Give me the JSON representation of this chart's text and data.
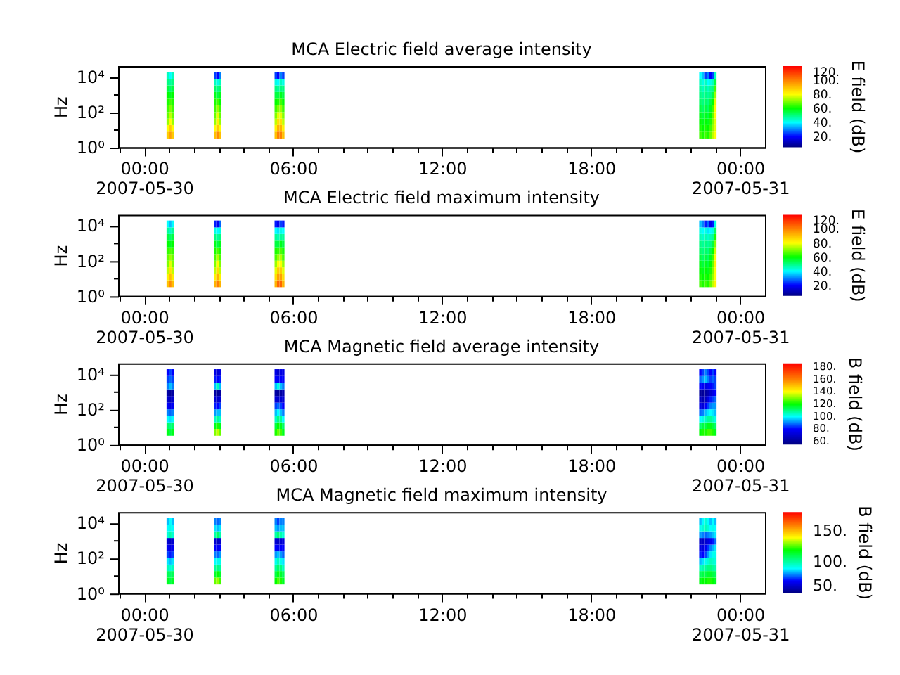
{
  "chart_data": [
    {
      "type": "scatter",
      "marker": "square",
      "title": "MCA  Electric field average intensity",
      "ylabel": "Hz",
      "clabel": "E field (dB)",
      "log": "y",
      "x": [
        0.95,
        1.05,
        1.15,
        2.85,
        2.95,
        3.05,
        5.3,
        5.4,
        5.5,
        5.6,
        22.4,
        22.5,
        22.6,
        22.7,
        22.8,
        22.9,
        23,
        0.95,
        1.05,
        1.15,
        2.85,
        2.95,
        3.05,
        5.3,
        5.4,
        5.5,
        5.6,
        22.4,
        22.5,
        22.6,
        22.7,
        22.8,
        22.9,
        23,
        0.95,
        1.05,
        1.15,
        2.85,
        2.95,
        3.05,
        5.3,
        5.4,
        5.5,
        5.6,
        22.4,
        22.5,
        22.6,
        22.7,
        22.8,
        22.9,
        23,
        0.95,
        1.05,
        1.15,
        2.85,
        2.95,
        3.05,
        5.3,
        5.4,
        5.5,
        5.6,
        22.4,
        22.5,
        22.6,
        22.7,
        22.8,
        22.9,
        23,
        0.95,
        1.05,
        1.15,
        2.85,
        2.95,
        3.05,
        5.3,
        5.4,
        5.5,
        5.6,
        22.4,
        22.5,
        22.6,
        22.7,
        22.8,
        22.9,
        23,
        0.95,
        1.05,
        1.15,
        2.85,
        2.95,
        3.05,
        5.3,
        5.4,
        5.5,
        5.6,
        22.4,
        22.5,
        22.6,
        22.7,
        22.8,
        22.9,
        23,
        0.95,
        1.05,
        1.15,
        2.85,
        2.95,
        3.05,
        5.3,
        5.4,
        5.5,
        5.6,
        22.4,
        22.5,
        22.6,
        22.7,
        22.8,
        22.9,
        23,
        0.95,
        1.05,
        1.15,
        2.85,
        2.95,
        3.05,
        5.3,
        5.4,
        5.5,
        5.6,
        22.4,
        22.5,
        22.6,
        22.7,
        22.8,
        22.9,
        23,
        0.95,
        1.05,
        1.15,
        2.85,
        2.95,
        3.05,
        5.3,
        5.4,
        5.5,
        5.6,
        22.4,
        22.5,
        22.6,
        22.7,
        22.8,
        22.9,
        23,
        0.95,
        1.05,
        1.15,
        2.85,
        2.95,
        3.05,
        5.3,
        5.4,
        5.5,
        5.6,
        22.4,
        22.5,
        22.6,
        22.7,
        22.8,
        22.9,
        23
      ],
      "values": [
        4.9,
        4.9,
        4.9,
        4.9,
        4.9,
        4.9,
        4.9,
        4.9,
        4.9,
        4.9,
        4.9,
        4.9,
        4.9,
        4.9,
        4.9,
        4.9,
        4.9,
        12,
        12,
        12,
        12,
        12,
        12,
        12,
        12,
        12,
        12,
        12,
        12,
        12,
        12,
        12,
        12,
        12,
        27,
        27,
        27,
        27,
        27,
        27,
        27,
        27,
        27,
        27,
        27,
        27,
        27,
        27,
        27,
        27,
        27,
        65,
        65,
        65,
        65,
        65,
        65,
        65,
        65,
        65,
        65,
        65,
        65,
        65,
        65,
        65,
        65,
        65,
        150,
        150,
        150,
        150,
        150,
        150,
        150,
        150,
        150,
        150,
        150,
        150,
        150,
        150,
        150,
        150,
        150,
        370,
        370,
        370,
        370,
        370,
        370,
        370,
        370,
        370,
        370,
        370,
        370,
        370,
        370,
        370,
        370,
        370,
        870,
        870,
        870,
        870,
        870,
        870,
        870,
        870,
        870,
        870,
        870,
        870,
        870,
        870,
        870,
        870,
        870,
        2100,
        2100,
        2100,
        2100,
        2100,
        2100,
        2100,
        2100,
        2100,
        2100,
        2100,
        2100,
        2100,
        2100,
        2100,
        2100,
        2100,
        4900,
        4900,
        4900,
        4900,
        4900,
        4900,
        4900,
        4900,
        4900,
        4900,
        4900,
        4900,
        4900,
        4900,
        4900,
        4900,
        4900,
        12000,
        12000,
        12000,
        12000,
        12000,
        12000,
        12000,
        12000,
        12000,
        12000,
        12000,
        12000,
        12000,
        12000,
        12000,
        12000,
        12000
      ],
      "cvalues": [
        88,
        95,
        88,
        90,
        98,
        90,
        90,
        100,
        100,
        90,
        65,
        62,
        65,
        62,
        68,
        75,
        80,
        80,
        88,
        80,
        80,
        88,
        80,
        82,
        92,
        92,
        82,
        62,
        60,
        62,
        60,
        65,
        72,
        78,
        72,
        80,
        72,
        72,
        82,
        72,
        75,
        85,
        85,
        75,
        60,
        58,
        60,
        58,
        62,
        70,
        78,
        68,
        75,
        68,
        68,
        78,
        68,
        70,
        78,
        78,
        70,
        58,
        55,
        58,
        55,
        60,
        68,
        80,
        65,
        70,
        65,
        65,
        72,
        65,
        65,
        70,
        72,
        65,
        55,
        52,
        55,
        52,
        58,
        65,
        80,
        62,
        65,
        62,
        62,
        65,
        60,
        60,
        62,
        65,
        60,
        52,
        50,
        52,
        50,
        55,
        60,
        78,
        60,
        58,
        60,
        58,
        55,
        58,
        55,
        55,
        58,
        55,
        50,
        48,
        50,
        48,
        50,
        55,
        72,
        55,
        52,
        55,
        52,
        50,
        52,
        50,
        48,
        50,
        50,
        48,
        45,
        48,
        45,
        48,
        50,
        65,
        50,
        48,
        50,
        45,
        42,
        45,
        42,
        40,
        45,
        42,
        45,
        42,
        45,
        40,
        42,
        45,
        55,
        45,
        40,
        45,
        25,
        20,
        30,
        25,
        20,
        30,
        25,
        40,
        35,
        25,
        30,
        20,
        25,
        45
      ],
      "xlim": [
        -1.05,
        25
      ],
      "xticks": [
        {
          "value": -1,
          "label": null
        },
        {
          "value": 0,
          "label": "00:00\n2007-05-30"
        },
        {
          "value": 1,
          "label": null
        },
        {
          "value": 2,
          "label": null
        },
        {
          "value": 3,
          "label": null
        },
        {
          "value": 4,
          "label": null
        },
        {
          "value": 5,
          "label": null
        },
        {
          "value": 6,
          "label": "06:00"
        },
        {
          "value": 7,
          "label": null
        },
        {
          "value": 8,
          "label": null
        },
        {
          "value": 9,
          "label": null
        },
        {
          "value": 10,
          "label": null
        },
        {
          "value": 11,
          "label": null
        },
        {
          "value": 12,
          "label": "12:00"
        },
        {
          "value": 13,
          "label": null
        },
        {
          "value": 14,
          "label": null
        },
        {
          "value": 15,
          "label": null
        },
        {
          "value": 16,
          "label": null
        },
        {
          "value": 17,
          "label": null
        },
        {
          "value": 18,
          "label": "18:00"
        },
        {
          "value": 19,
          "label": null
        },
        {
          "value": 20,
          "label": null
        },
        {
          "value": 21,
          "label": null
        },
        {
          "value": 22,
          "label": null
        },
        {
          "value": 23,
          "label": null
        },
        {
          "value": 24,
          "label": "00:00\n2007-05-31"
        }
      ],
      "ylim": [
        1,
        40000
      ],
      "yticks": [
        {
          "value": 1,
          "label": "10⁰"
        },
        {
          "value": 10,
          "label": null
        },
        {
          "value": 100,
          "label": "10²"
        },
        {
          "value": 1000,
          "label": null
        },
        {
          "value": 10000,
          "label": "10⁴"
        }
      ],
      "clim": [
        5,
        120
      ],
      "cticks": [
        {
          "value": 20,
          "label": "20."
        },
        {
          "value": 40,
          "label": "40."
        },
        {
          "value": 60,
          "label": "60."
        },
        {
          "value": 80,
          "label": "80."
        },
        {
          "value": 100,
          "label": "100."
        },
        {
          "value": 120,
          "label": "120."
        }
      ]
    },
    {
      "type": "scatter",
      "marker": "square",
      "title": "MCA  Electric field maximum intensity",
      "ylabel": "Hz",
      "clabel": "E field (dB)",
      "log": "y",
      "x": [
        0.95,
        1.05,
        1.15,
        2.85,
        2.95,
        3.05,
        5.3,
        5.4,
        5.5,
        5.6,
        22.4,
        22.5,
        22.6,
        22.7,
        22.8,
        22.9,
        23,
        0.95,
        1.05,
        1.15,
        2.85,
        2.95,
        3.05,
        5.3,
        5.4,
        5.5,
        5.6,
        22.4,
        22.5,
        22.6,
        22.7,
        22.8,
        22.9,
        23,
        0.95,
        1.05,
        1.15,
        2.85,
        2.95,
        3.05,
        5.3,
        5.4,
        5.5,
        5.6,
        22.4,
        22.5,
        22.6,
        22.7,
        22.8,
        22.9,
        23,
        0.95,
        1.05,
        1.15,
        2.85,
        2.95,
        3.05,
        5.3,
        5.4,
        5.5,
        5.6,
        22.4,
        22.5,
        22.6,
        22.7,
        22.8,
        22.9,
        23,
        0.95,
        1.05,
        1.15,
        2.85,
        2.95,
        3.05,
        5.3,
        5.4,
        5.5,
        5.6,
        22.4,
        22.5,
        22.6,
        22.7,
        22.8,
        22.9,
        23,
        0.95,
        1.05,
        1.15,
        2.85,
        2.95,
        3.05,
        5.3,
        5.4,
        5.5,
        5.6,
        22.4,
        22.5,
        22.6,
        22.7,
        22.8,
        22.9,
        23,
        0.95,
        1.05,
        1.15,
        2.85,
        2.95,
        3.05,
        5.3,
        5.4,
        5.5,
        5.6,
        22.4,
        22.5,
        22.6,
        22.7,
        22.8,
        22.9,
        23,
        0.95,
        1.05,
        1.15,
        2.85,
        2.95,
        3.05,
        5.3,
        5.4,
        5.5,
        5.6,
        22.4,
        22.5,
        22.6,
        22.7,
        22.8,
        22.9,
        23,
        0.95,
        1.05,
        1.15,
        2.85,
        2.95,
        3.05,
        5.3,
        5.4,
        5.5,
        5.6,
        22.4,
        22.5,
        22.6,
        22.7,
        22.8,
        22.9,
        23,
        0.95,
        1.05,
        1.15,
        2.85,
        2.95,
        3.05,
        5.3,
        5.4,
        5.5,
        5.6,
        22.4,
        22.5,
        22.6,
        22.7,
        22.8,
        22.9,
        23
      ],
      "values": [
        4.9,
        4.9,
        4.9,
        4.9,
        4.9,
        4.9,
        4.9,
        4.9,
        4.9,
        4.9,
        4.9,
        4.9,
        4.9,
        4.9,
        4.9,
        4.9,
        4.9,
        12,
        12,
        12,
        12,
        12,
        12,
        12,
        12,
        12,
        12,
        12,
        12,
        12,
        12,
        12,
        12,
        12,
        27,
        27,
        27,
        27,
        27,
        27,
        27,
        27,
        27,
        27,
        27,
        27,
        27,
        27,
        27,
        27,
        27,
        65,
        65,
        65,
        65,
        65,
        65,
        65,
        65,
        65,
        65,
        65,
        65,
        65,
        65,
        65,
        65,
        65,
        150,
        150,
        150,
        150,
        150,
        150,
        150,
        150,
        150,
        150,
        150,
        150,
        150,
        150,
        150,
        150,
        150,
        370,
        370,
        370,
        370,
        370,
        370,
        370,
        370,
        370,
        370,
        370,
        370,
        370,
        370,
        370,
        370,
        370,
        870,
        870,
        870,
        870,
        870,
        870,
        870,
        870,
        870,
        870,
        870,
        870,
        870,
        870,
        870,
        870,
        870,
        2100,
        2100,
        2100,
        2100,
        2100,
        2100,
        2100,
        2100,
        2100,
        2100,
        2100,
        2100,
        2100,
        2100,
        2100,
        2100,
        2100,
        4900,
        4900,
        4900,
        4900,
        4900,
        4900,
        4900,
        4900,
        4900,
        4900,
        4900,
        4900,
        4900,
        4900,
        4900,
        4900,
        4900,
        12000,
        12000,
        12000,
        12000,
        12000,
        12000,
        12000,
        12000,
        12000,
        12000,
        12000,
        12000,
        12000,
        12000,
        12000,
        12000,
        12000
      ],
      "cvalues": [
        90,
        98,
        90,
        92,
        100,
        92,
        92,
        104,
        104,
        92,
        65,
        62,
        65,
        62,
        68,
        75,
        82,
        82,
        90,
        82,
        82,
        92,
        82,
        85,
        95,
        95,
        85,
        62,
        60,
        62,
        60,
        65,
        72,
        80,
        75,
        84,
        75,
        75,
        85,
        75,
        78,
        88,
        88,
        78,
        60,
        58,
        60,
        58,
        62,
        70,
        80,
        70,
        78,
        70,
        70,
        80,
        70,
        72,
        80,
        80,
        72,
        58,
        55,
        58,
        55,
        60,
        68,
        82,
        68,
        72,
        68,
        66,
        74,
        66,
        66,
        72,
        74,
        66,
        55,
        52,
        55,
        52,
        58,
        65,
        80,
        64,
        66,
        64,
        62,
        66,
        62,
        62,
        64,
        66,
        62,
        52,
        50,
        52,
        50,
        55,
        60,
        76,
        60,
        58,
        60,
        58,
        55,
        58,
        55,
        55,
        58,
        55,
        50,
        48,
        50,
        48,
        50,
        55,
        70,
        55,
        52,
        55,
        50,
        48,
        50,
        48,
        46,
        48,
        48,
        46,
        44,
        46,
        44,
        46,
        48,
        62,
        48,
        45,
        48,
        42,
        40,
        42,
        40,
        38,
        42,
        40,
        42,
        40,
        42,
        38,
        40,
        42,
        52,
        40,
        35,
        40,
        22,
        18,
        28,
        22,
        18,
        25,
        22,
        35,
        30,
        22,
        28,
        18,
        22,
        42
      ],
      "xlim": [
        -1.05,
        25
      ],
      "xticks": [
        {
          "value": -1,
          "label": null
        },
        {
          "value": 0,
          "label": "00:00\n2007-05-30"
        },
        {
          "value": 1,
          "label": null
        },
        {
          "value": 2,
          "label": null
        },
        {
          "value": 3,
          "label": null
        },
        {
          "value": 4,
          "label": null
        },
        {
          "value": 5,
          "label": null
        },
        {
          "value": 6,
          "label": "06:00"
        },
        {
          "value": 7,
          "label": null
        },
        {
          "value": 8,
          "label": null
        },
        {
          "value": 9,
          "label": null
        },
        {
          "value": 10,
          "label": null
        },
        {
          "value": 11,
          "label": null
        },
        {
          "value": 12,
          "label": "12:00"
        },
        {
          "value": 13,
          "label": null
        },
        {
          "value": 14,
          "label": null
        },
        {
          "value": 15,
          "label": null
        },
        {
          "value": 16,
          "label": null
        },
        {
          "value": 17,
          "label": null
        },
        {
          "value": 18,
          "label": "18:00"
        },
        {
          "value": 19,
          "label": null
        },
        {
          "value": 20,
          "label": null
        },
        {
          "value": 21,
          "label": null
        },
        {
          "value": 22,
          "label": null
        },
        {
          "value": 23,
          "label": null
        },
        {
          "value": 24,
          "label": "00:00\n2007-05-31"
        }
      ],
      "ylim": [
        1,
        40000
      ],
      "yticks": [
        {
          "value": 1,
          "label": "10⁰"
        },
        {
          "value": 10,
          "label": null
        },
        {
          "value": 100,
          "label": "10²"
        },
        {
          "value": 1000,
          "label": null
        },
        {
          "value": 10000,
          "label": "10⁴"
        }
      ],
      "clim": [
        5,
        120
      ],
      "cticks": [
        {
          "value": 20,
          "label": "20."
        },
        {
          "value": 40,
          "label": "40."
        },
        {
          "value": 60,
          "label": "60."
        },
        {
          "value": 80,
          "label": "80."
        },
        {
          "value": 100,
          "label": "100."
        },
        {
          "value": 120,
          "label": "120."
        }
      ]
    },
    {
      "type": "scatter",
      "marker": "square",
      "title": "MCA  Magnetic field average intensity",
      "ylabel": "Hz",
      "clabel": "B field (dB)",
      "log": "y",
      "x": [
        0.95,
        1.05,
        1.15,
        2.85,
        2.95,
        3.05,
        5.3,
        5.4,
        5.5,
        5.6,
        22.4,
        22.5,
        22.6,
        22.7,
        22.8,
        22.9,
        23,
        0.95,
        1.05,
        1.15,
        2.85,
        2.95,
        3.05,
        5.3,
        5.4,
        5.5,
        5.6,
        22.4,
        22.5,
        22.6,
        22.7,
        22.8,
        22.9,
        23,
        0.95,
        1.05,
        1.15,
        2.85,
        2.95,
        3.05,
        5.3,
        5.4,
        5.5,
        5.6,
        22.4,
        22.5,
        22.6,
        22.7,
        22.8,
        22.9,
        23,
        0.95,
        1.05,
        1.15,
        2.85,
        2.95,
        3.05,
        5.3,
        5.4,
        5.5,
        5.6,
        22.4,
        22.5,
        22.6,
        22.7,
        22.8,
        22.9,
        23,
        0.95,
        1.05,
        1.15,
        2.85,
        2.95,
        3.05,
        5.3,
        5.4,
        5.5,
        5.6,
        22.4,
        22.5,
        22.6,
        22.7,
        22.8,
        22.9,
        23,
        0.95,
        1.05,
        1.15,
        2.85,
        2.95,
        3.05,
        5.3,
        5.4,
        5.5,
        5.6,
        22.4,
        22.5,
        22.6,
        22.7,
        22.8,
        22.9,
        23,
        0.95,
        1.05,
        1.15,
        2.85,
        2.95,
        3.05,
        5.3,
        5.4,
        5.5,
        5.6,
        22.4,
        22.5,
        22.6,
        22.7,
        22.8,
        22.9,
        23,
        0.95,
        1.05,
        1.15,
        2.85,
        2.95,
        3.05,
        5.3,
        5.4,
        5.5,
        5.6,
        22.4,
        22.5,
        22.6,
        22.7,
        22.8,
        22.9,
        23,
        0.95,
        1.05,
        1.15,
        2.85,
        2.95,
        3.05,
        5.3,
        5.4,
        5.5,
        5.6,
        22.4,
        22.5,
        22.6,
        22.7,
        22.8,
        22.9,
        23,
        0.95,
        1.05,
        1.15,
        2.85,
        2.95,
        3.05,
        5.3,
        5.4,
        5.5,
        5.6,
        22.4,
        22.5,
        22.6,
        22.7,
        22.8,
        22.9,
        23
      ],
      "values": [
        4.9,
        4.9,
        4.9,
        4.9,
        4.9,
        4.9,
        4.9,
        4.9,
        4.9,
        4.9,
        4.9,
        4.9,
        4.9,
        4.9,
        4.9,
        4.9,
        4.9,
        12,
        12,
        12,
        12,
        12,
        12,
        12,
        12,
        12,
        12,
        12,
        12,
        12,
        12,
        12,
        12,
        12,
        27,
        27,
        27,
        27,
        27,
        27,
        27,
        27,
        27,
        27,
        27,
        27,
        27,
        27,
        27,
        27,
        27,
        65,
        65,
        65,
        65,
        65,
        65,
        65,
        65,
        65,
        65,
        65,
        65,
        65,
        65,
        65,
        65,
        65,
        150,
        150,
        150,
        150,
        150,
        150,
        150,
        150,
        150,
        150,
        150,
        150,
        150,
        150,
        150,
        150,
        150,
        370,
        370,
        370,
        370,
        370,
        370,
        370,
        370,
        370,
        370,
        370,
        370,
        370,
        370,
        370,
        370,
        370,
        870,
        870,
        870,
        870,
        870,
        870,
        870,
        870,
        870,
        870,
        870,
        870,
        870,
        870,
        870,
        870,
        870,
        2100,
        2100,
        2100,
        2100,
        2100,
        2100,
        2100,
        2100,
        2100,
        2100,
        2100,
        2100,
        2100,
        2100,
        2100,
        2100,
        2100,
        4900,
        4900,
        4900,
        4900,
        4900,
        4900,
        4900,
        4900,
        4900,
        4900,
        4900,
        4900,
        4900,
        4900,
        4900,
        4900,
        4900,
        12000,
        12000,
        12000,
        12000,
        12000,
        12000,
        12000,
        12000,
        12000,
        12000,
        12000,
        12000,
        12000,
        12000,
        12000,
        12000,
        12000
      ],
      "cvalues": [
        118,
        115,
        118,
        130,
        135,
        128,
        122,
        128,
        125,
        118,
        120,
        122,
        122,
        125,
        125,
        122,
        118,
        112,
        110,
        112,
        118,
        122,
        118,
        115,
        120,
        118,
        112,
        112,
        115,
        115,
        118,
        118,
        115,
        112,
        100,
        98,
        100,
        105,
        108,
        105,
        105,
        110,
        108,
        100,
        100,
        102,
        105,
        108,
        108,
        105,
        102,
        90,
        88,
        90,
        92,
        95,
        95,
        95,
        100,
        95,
        90,
        88,
        90,
        95,
        98,
        100,
        98,
        95,
        78,
        75,
        78,
        82,
        80,
        85,
        85,
        88,
        85,
        80,
        75,
        72,
        78,
        85,
        90,
        92,
        92,
        70,
        68,
        70,
        72,
        70,
        72,
        72,
        70,
        72,
        72,
        68,
        65,
        68,
        75,
        82,
        85,
        88,
        62,
        60,
        62,
        62,
        60,
        62,
        62,
        60,
        62,
        65,
        60,
        60,
        62,
        65,
        70,
        75,
        80,
        90,
        95,
        90,
        95,
        105,
        95,
        95,
        102,
        95,
        90,
        80,
        78,
        75,
        78,
        80,
        82,
        85,
        85,
        88,
        85,
        82,
        80,
        82,
        80,
        78,
        80,
        80,
        88,
        92,
        95,
        90,
        85,
        88,
        85,
        80,
        85,
        80,
        75,
        72,
        75,
        75,
        70,
        75,
        75,
        80,
        85,
        90,
        85,
        80,
        85,
        80
      ],
      "xlim": [
        -1.05,
        25
      ],
      "xticks": [
        {
          "value": -1,
          "label": null
        },
        {
          "value": 0,
          "label": "00:00\n2007-05-30"
        },
        {
          "value": 1,
          "label": null
        },
        {
          "value": 2,
          "label": null
        },
        {
          "value": 3,
          "label": null
        },
        {
          "value": 4,
          "label": null
        },
        {
          "value": 5,
          "label": null
        },
        {
          "value": 6,
          "label": "06:00"
        },
        {
          "value": 7,
          "label": null
        },
        {
          "value": 8,
          "label": null
        },
        {
          "value": 9,
          "label": null
        },
        {
          "value": 10,
          "label": null
        },
        {
          "value": 11,
          "label": null
        },
        {
          "value": 12,
          "label": "12:00"
        },
        {
          "value": 13,
          "label": null
        },
        {
          "value": 14,
          "label": null
        },
        {
          "value": 15,
          "label": null
        },
        {
          "value": 16,
          "label": null
        },
        {
          "value": 17,
          "label": null
        },
        {
          "value": 18,
          "label": "18:00"
        },
        {
          "value": 19,
          "label": null
        },
        {
          "value": 20,
          "label": null
        },
        {
          "value": 21,
          "label": null
        },
        {
          "value": 22,
          "label": null
        },
        {
          "value": 23,
          "label": null
        },
        {
          "value": 24,
          "label": "00:00\n2007-05-31"
        }
      ],
      "ylim": [
        1,
        40000
      ],
      "yticks": [
        {
          "value": 1,
          "label": "10⁰"
        },
        {
          "value": 10,
          "label": null
        },
        {
          "value": 100,
          "label": "10²"
        },
        {
          "value": 1000,
          "label": null
        },
        {
          "value": 10000,
          "label": "10⁴"
        }
      ],
      "clim": [
        55,
        186
      ],
      "cticks": [
        {
          "value": 60,
          "label": "60."
        },
        {
          "value": 80,
          "label": "80."
        },
        {
          "value": 100,
          "label": "100."
        },
        {
          "value": 120,
          "label": "120."
        },
        {
          "value": 140,
          "label": "140."
        },
        {
          "value": 160,
          "label": "160."
        },
        {
          "value": 180,
          "label": "180."
        }
      ]
    },
    {
      "type": "scatter",
      "marker": "square",
      "title": "MCA  Magnetic field maximum intensity",
      "ylabel": "Hz",
      "clabel": "B field (dB)",
      "log": "y",
      "x": [
        0.95,
        1.05,
        1.15,
        2.85,
        2.95,
        3.05,
        5.3,
        5.4,
        5.5,
        5.6,
        22.4,
        22.5,
        22.6,
        22.7,
        22.8,
        22.9,
        23,
        0.95,
        1.05,
        1.15,
        2.85,
        2.95,
        3.05,
        5.3,
        5.4,
        5.5,
        5.6,
        22.4,
        22.5,
        22.6,
        22.7,
        22.8,
        22.9,
        23,
        0.95,
        1.05,
        1.15,
        2.85,
        2.95,
        3.05,
        5.3,
        5.4,
        5.5,
        5.6,
        22.4,
        22.5,
        22.6,
        22.7,
        22.8,
        22.9,
        23,
        0.95,
        1.05,
        1.15,
        2.85,
        2.95,
        3.05,
        5.3,
        5.4,
        5.5,
        5.6,
        22.4,
        22.5,
        22.6,
        22.7,
        22.8,
        22.9,
        23,
        0.95,
        1.05,
        1.15,
        2.85,
        2.95,
        3.05,
        5.3,
        5.4,
        5.5,
        5.6,
        22.4,
        22.5,
        22.6,
        22.7,
        22.8,
        22.9,
        23,
        0.95,
        1.05,
        1.15,
        2.85,
        2.95,
        3.05,
        5.3,
        5.4,
        5.5,
        5.6,
        22.4,
        22.5,
        22.6,
        22.7,
        22.8,
        22.9,
        23,
        0.95,
        1.05,
        1.15,
        2.85,
        2.95,
        3.05,
        5.3,
        5.4,
        5.5,
        5.6,
        22.4,
        22.5,
        22.6,
        22.7,
        22.8,
        22.9,
        23,
        0.95,
        1.05,
        1.15,
        2.85,
        2.95,
        3.05,
        5.3,
        5.4,
        5.5,
        5.6,
        22.4,
        22.5,
        22.6,
        22.7,
        22.8,
        22.9,
        23,
        0.95,
        1.05,
        1.15,
        2.85,
        2.95,
        3.05,
        5.3,
        5.4,
        5.5,
        5.6,
        22.4,
        22.5,
        22.6,
        22.7,
        22.8,
        22.9,
        23,
        0.95,
        1.05,
        1.15,
        2.85,
        2.95,
        3.05,
        5.3,
        5.4,
        5.5,
        5.6,
        22.4,
        22.5,
        22.6,
        22.7,
        22.8,
        22.9,
        23
      ],
      "values": [
        4.9,
        4.9,
        4.9,
        4.9,
        4.9,
        4.9,
        4.9,
        4.9,
        4.9,
        4.9,
        4.9,
        4.9,
        4.9,
        4.9,
        4.9,
        4.9,
        4.9,
        12,
        12,
        12,
        12,
        12,
        12,
        12,
        12,
        12,
        12,
        12,
        12,
        12,
        12,
        12,
        12,
        12,
        27,
        27,
        27,
        27,
        27,
        27,
        27,
        27,
        27,
        27,
        27,
        27,
        27,
        27,
        27,
        27,
        27,
        65,
        65,
        65,
        65,
        65,
        65,
        65,
        65,
        65,
        65,
        65,
        65,
        65,
        65,
        65,
        65,
        65,
        150,
        150,
        150,
        150,
        150,
        150,
        150,
        150,
        150,
        150,
        150,
        150,
        150,
        150,
        150,
        150,
        150,
        370,
        370,
        370,
        370,
        370,
        370,
        370,
        370,
        370,
        370,
        370,
        370,
        370,
        370,
        370,
        370,
        370,
        870,
        870,
        870,
        870,
        870,
        870,
        870,
        870,
        870,
        870,
        870,
        870,
        870,
        870,
        870,
        870,
        870,
        2100,
        2100,
        2100,
        2100,
        2100,
        2100,
        2100,
        2100,
        2100,
        2100,
        2100,
        2100,
        2100,
        2100,
        2100,
        2100,
        2100,
        4900,
        4900,
        4900,
        4900,
        4900,
        4900,
        4900,
        4900,
        4900,
        4900,
        4900,
        4900,
        4900,
        4900,
        4900,
        4900,
        4900,
        12000,
        12000,
        12000,
        12000,
        12000,
        12000,
        12000,
        12000,
        12000,
        12000,
        12000,
        12000,
        12000,
        12000,
        12000,
        12000,
        12000
      ],
      "cvalues": [
        116,
        112,
        116,
        128,
        132,
        125,
        120,
        126,
        122,
        116,
        118,
        120,
        120,
        122,
        122,
        120,
        116,
        110,
        108,
        110,
        115,
        120,
        115,
        112,
        118,
        115,
        110,
        110,
        112,
        112,
        115,
        115,
        112,
        110,
        98,
        95,
        98,
        102,
        105,
        102,
        102,
        108,
        105,
        98,
        98,
        100,
        102,
        105,
        105,
        102,
        100,
        88,
        85,
        88,
        90,
        92,
        92,
        92,
        98,
        92,
        88,
        85,
        88,
        92,
        95,
        98,
        96,
        94,
        75,
        72,
        75,
        80,
        78,
        82,
        82,
        85,
        82,
        78,
        72,
        70,
        75,
        82,
        88,
        92,
        92,
        68,
        66,
        68,
        70,
        68,
        70,
        70,
        68,
        70,
        70,
        66,
        65,
        68,
        74,
        80,
        84,
        88,
        63,
        61,
        63,
        63,
        61,
        63,
        63,
        61,
        63,
        64,
        61,
        61,
        63,
        65,
        68,
        72,
        78,
        95,
        100,
        95,
        100,
        108,
        100,
        100,
        106,
        100,
        95,
        82,
        80,
        78,
        80,
        82,
        85,
        88,
        90,
        92,
        90,
        88,
        85,
        88,
        85,
        82,
        85,
        85,
        92,
        95,
        98,
        95,
        90,
        92,
        90,
        85,
        90,
        85,
        80,
        78,
        80,
        80,
        75,
        80,
        80,
        85,
        90,
        95,
        90,
        85,
        90,
        85
      ],
      "xlim": [
        -1.05,
        25
      ],
      "xticks": [
        {
          "value": -1,
          "label": null
        },
        {
          "value": 0,
          "label": "00:00\n2007-05-30"
        },
        {
          "value": 1,
          "label": null
        },
        {
          "value": 2,
          "label": null
        },
        {
          "value": 3,
          "label": null
        },
        {
          "value": 4,
          "label": null
        },
        {
          "value": 5,
          "label": null
        },
        {
          "value": 6,
          "label": "06:00"
        },
        {
          "value": 7,
          "label": null
        },
        {
          "value": 8,
          "label": null
        },
        {
          "value": 9,
          "label": null
        },
        {
          "value": 10,
          "label": null
        },
        {
          "value": 11,
          "label": null
        },
        {
          "value": 12,
          "label": "12:00"
        },
        {
          "value": 13,
          "label": null
        },
        {
          "value": 14,
          "label": null
        },
        {
          "value": 15,
          "label": null
        },
        {
          "value": 16,
          "label": null
        },
        {
          "value": 17,
          "label": null
        },
        {
          "value": 18,
          "label": "18:00"
        },
        {
          "value": 19,
          "label": null
        },
        {
          "value": 20,
          "label": null
        },
        {
          "value": 21,
          "label": null
        },
        {
          "value": 22,
          "label": null
        },
        {
          "value": 23,
          "label": null
        },
        {
          "value": 24,
          "label": "00:00\n2007-05-31"
        }
      ],
      "ylim": [
        1,
        40000
      ],
      "yticks": [
        {
          "value": 1,
          "label": "10⁰"
        },
        {
          "value": 10,
          "label": null
        },
        {
          "value": 100,
          "label": "10²"
        },
        {
          "value": 1000,
          "label": null
        },
        {
          "value": 10000,
          "label": "10⁴"
        }
      ],
      "clim": [
        50,
        182
      ],
      "cticks": [
        {
          "value": 50,
          "label": "50."
        },
        {
          "value": 100,
          "label": "100."
        },
        {
          "value": 150,
          "label": "150."
        }
      ]
    }
  ]
}
